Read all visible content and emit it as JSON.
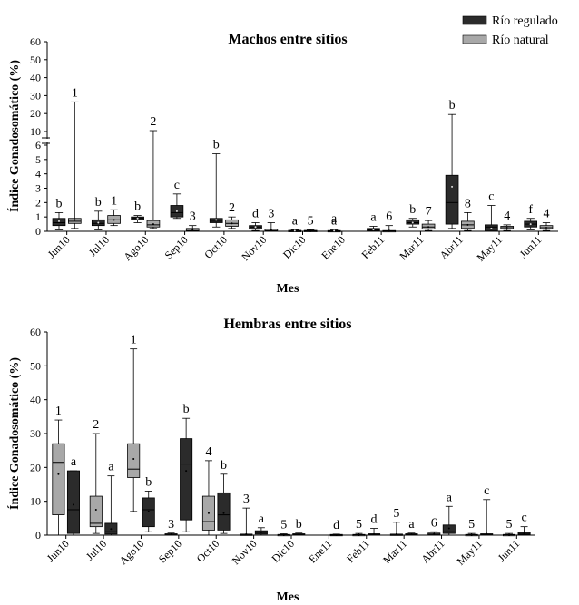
{
  "legend": {
    "items": [
      {
        "label": "Río regulado",
        "color": "#2b2b2b"
      },
      {
        "label": "Río natural",
        "color": "#a8a8a8"
      }
    ]
  },
  "chart_data": [
    {
      "type": "box",
      "title": "Machos entre sitios",
      "xlabel": "Mes",
      "ylabel": "Índice Gonadosomático (%)",
      "y_axis_break": true,
      "y_ticks_lower": [
        0,
        1,
        2,
        3,
        4,
        5,
        6
      ],
      "y_ticks_upper": [
        10,
        20,
        30,
        40,
        50,
        60
      ],
      "categories": [
        "Jun10",
        "Jul10",
        "Ago10",
        "Sep10",
        "Oct10",
        "Nov10",
        "Dic10",
        "Ene10",
        "Feb11",
        "Mar11",
        "Abr11",
        "May11",
        "Jun11"
      ],
      "series": [
        {
          "name": "Río regulado",
          "boxes": [
            {
              "min": 0.1,
              "q1": 0.4,
              "median": 0.6,
              "q3": 0.9,
              "max": 1.3,
              "mean": 0.7,
              "label": "b"
            },
            {
              "min": 0.1,
              "q1": 0.4,
              "median": 0.55,
              "q3": 0.8,
              "max": 1.4,
              "mean": 0.6,
              "label": "b"
            },
            {
              "min": 0.6,
              "q1": 0.8,
              "median": 0.9,
              "q3": 1.0,
              "max": 1.1,
              "mean": 0.9,
              "label": "b"
            },
            {
              "min": 0.9,
              "q1": 1.0,
              "median": 1.3,
              "q3": 1.8,
              "max": 2.6,
              "mean": 1.4,
              "label": "c"
            },
            {
              "min": 0.3,
              "q1": 0.6,
              "median": 0.7,
              "q3": 0.9,
              "max": 5.4,
              "mean": 0.8,
              "label": "b"
            },
            {
              "min": 0.05,
              "q1": 0.15,
              "median": 0.3,
              "q3": 0.4,
              "max": 0.6,
              "mean": 0.3,
              "label": "d"
            },
            {
              "min": 0.0,
              "q1": 0.02,
              "median": 0.04,
              "q3": 0.06,
              "max": 0.1,
              "mean": 0.04,
              "label": "a"
            },
            {
              "min": 0.0,
              "q1": 0.02,
              "median": 0.03,
              "q3": 0.05,
              "max": 0.1,
              "mean": 0.04,
              "label": "a"
            },
            {
              "min": 0.0,
              "q1": 0.05,
              "median": 0.1,
              "q3": 0.2,
              "max": 0.35,
              "mean": 0.12,
              "label": "a"
            },
            {
              "min": 0.3,
              "q1": 0.5,
              "median": 0.6,
              "q3": 0.8,
              "max": 0.9,
              "mean": 0.6,
              "label": "b"
            },
            {
              "min": 0.2,
              "q1": 0.5,
              "median": 2.0,
              "q3": 3.9,
              "max": 19.5,
              "mean": 3.1,
              "label": "b"
            },
            {
              "min": 0.0,
              "q1": 0.02,
              "median": 0.3,
              "q3": 0.45,
              "max": 1.8,
              "mean": 0.2,
              "label": "c"
            },
            {
              "min": 0.1,
              "q1": 0.3,
              "median": 0.5,
              "q3": 0.7,
              "max": 0.9,
              "mean": 0.5,
              "label": "f"
            }
          ]
        },
        {
          "name": "Río natural",
          "boxes": [
            {
              "min": 0.2,
              "q1": 0.55,
              "median": 0.7,
              "q3": 0.9,
              "max": 26.5,
              "mean": 0.8,
              "label": "1"
            },
            {
              "min": 0.4,
              "q1": 0.55,
              "median": 0.8,
              "q3": 1.1,
              "max": 1.5,
              "mean": 0.8,
              "label": "1"
            },
            {
              "min": 0.2,
              "q1": 0.3,
              "median": 0.45,
              "q3": 0.75,
              "max": 10.5,
              "mean": 0.5,
              "label": "2"
            },
            {
              "min": 0.0,
              "q1": 0.02,
              "median": 0.05,
              "q3": 0.2,
              "max": 0.4,
              "mean": 0.1,
              "label": "3"
            },
            {
              "min": 0.2,
              "q1": 0.35,
              "median": 0.55,
              "q3": 0.8,
              "max": 1.0,
              "mean": 0.55,
              "label": "2"
            },
            {
              "min": 0.0,
              "q1": 0.02,
              "median": 0.05,
              "q3": 0.15,
              "max": 0.6,
              "mean": 0.1,
              "label": "3"
            },
            {
              "min": 0.0,
              "q1": 0.01,
              "median": 0.03,
              "q3": 0.06,
              "max": 0.1,
              "mean": 0.03,
              "label": "5"
            },
            null,
            {
              "min": 0.0,
              "q1": 0.01,
              "median": 0.02,
              "q3": 0.05,
              "max": 0.4,
              "mean": 0.05,
              "label": "6"
            },
            {
              "min": 0.05,
              "q1": 0.15,
              "median": 0.3,
              "q3": 0.5,
              "max": 0.75,
              "mean": 0.3,
              "label": "7"
            },
            {
              "min": 0.05,
              "q1": 0.2,
              "median": 0.45,
              "q3": 0.7,
              "max": 1.3,
              "mean": 0.45,
              "label": "8"
            },
            {
              "min": 0.05,
              "q1": 0.15,
              "median": 0.25,
              "q3": 0.35,
              "max": 0.45,
              "mean": 0.25,
              "label": "4"
            },
            {
              "min": 0.05,
              "q1": 0.15,
              "median": 0.25,
              "q3": 0.4,
              "max": 0.6,
              "mean": 0.25,
              "label": "4"
            }
          ]
        }
      ],
      "extra_labels": [
        {
          "category": "Ene10",
          "text": "a"
        }
      ]
    },
    {
      "type": "box",
      "title": "Hembras entre sitios",
      "xlabel": "Mes",
      "ylabel": "Índice Gonadosomático (%)",
      "ylim": [
        0,
        60
      ],
      "y_ticks": [
        0,
        10,
        20,
        30,
        40,
        50,
        60
      ],
      "categories": [
        "Jun10",
        "Jul10",
        "Ago10",
        "Sep10",
        "Oct10",
        "Nov10",
        "Dic10",
        "Ene11",
        "Feb11",
        "Mar11",
        "Abr11",
        "May11",
        "Jun11"
      ],
      "series": [
        {
          "name": "Río natural",
          "boxes": [
            {
              "min": 0.0,
              "q1": 6.0,
              "median": 21.5,
              "q3": 27.0,
              "max": 34.0,
              "mean": 18.0,
              "label": "1"
            },
            {
              "min": 0.5,
              "q1": 2.5,
              "median": 3.5,
              "q3": 11.5,
              "max": 30.0,
              "mean": 7.5,
              "label": "2"
            },
            {
              "min": 7.0,
              "q1": 17.0,
              "median": 19.5,
              "q3": 27.0,
              "max": 55.0,
              "mean": 22.5,
              "label": "1"
            },
            {
              "min": 0.0,
              "q1": 0.1,
              "median": 0.2,
              "q3": 0.4,
              "max": 0.6,
              "mean": 0.2,
              "label": "3"
            },
            {
              "min": 0.0,
              "q1": 1.5,
              "median": 4.0,
              "q3": 11.5,
              "max": 22.0,
              "mean": 6.5,
              "label": "4"
            },
            {
              "min": 0.0,
              "q1": 0.05,
              "median": 0.1,
              "q3": 0.3,
              "max": 8.0,
              "mean": 0.3,
              "label": "3"
            },
            {
              "min": 0.0,
              "q1": 0.05,
              "median": 0.1,
              "q3": 0.2,
              "max": 0.4,
              "mean": 0.1,
              "label": "5"
            },
            null,
            {
              "min": 0.0,
              "q1": 0.05,
              "median": 0.1,
              "q3": 0.2,
              "max": 0.5,
              "mean": 0.1,
              "label": "5"
            },
            {
              "min": 0.0,
              "q1": 0.05,
              "median": 0.1,
              "q3": 0.3,
              "max": 3.8,
              "mean": 0.3,
              "label": "5"
            },
            {
              "min": 0.0,
              "q1": 0.1,
              "median": 0.3,
              "q3": 0.6,
              "max": 1.0,
              "mean": 0.4,
              "label": "6"
            },
            {
              "min": 0.0,
              "q1": 0.05,
              "median": 0.1,
              "q3": 0.2,
              "max": 0.5,
              "mean": 0.1,
              "label": "5"
            },
            {
              "min": 0.0,
              "q1": 0.05,
              "median": 0.1,
              "q3": 0.2,
              "max": 0.5,
              "mean": 0.1,
              "label": "5"
            }
          ]
        },
        {
          "name": "Río regulado",
          "boxes": [
            {
              "min": 0.0,
              "q1": 0.5,
              "median": 7.5,
              "q3": 19.0,
              "max": 19.0,
              "mean": 9.0,
              "label": "a"
            },
            {
              "min": 0.0,
              "q1": 0.3,
              "median": 1.0,
              "q3": 3.5,
              "max": 17.5,
              "mean": 1.8,
              "label": "a"
            },
            {
              "min": 1.0,
              "q1": 2.5,
              "median": 7.5,
              "q3": 11.0,
              "max": 13.0,
              "mean": 7.0,
              "label": "b"
            },
            {
              "min": 1.0,
              "q1": 4.5,
              "median": 21.0,
              "q3": 28.5,
              "max": 34.5,
              "mean": 19.0,
              "label": "b"
            },
            {
              "min": 0.5,
              "q1": 1.5,
              "median": 6.0,
              "q3": 12.5,
              "max": 18.0,
              "mean": 6.5,
              "label": "b"
            },
            {
              "min": 0.0,
              "q1": 0.3,
              "median": 0.8,
              "q3": 1.3,
              "max": 2.2,
              "mean": 0.8,
              "label": "a"
            },
            {
              "min": 0.0,
              "q1": 0.1,
              "median": 0.2,
              "q3": 0.4,
              "max": 0.6,
              "mean": 0.2,
              "label": "b"
            },
            {
              "min": 0.0,
              "q1": 0.05,
              "median": 0.1,
              "q3": 0.2,
              "max": 0.3,
              "mean": 0.1,
              "label": "d"
            },
            {
              "min": 0.0,
              "q1": 0.1,
              "median": 0.2,
              "q3": 0.4,
              "max": 2.0,
              "mean": 0.3,
              "label": "d"
            },
            {
              "min": 0.0,
              "q1": 0.1,
              "median": 0.2,
              "q3": 0.4,
              "max": 0.6,
              "mean": 0.2,
              "label": "a"
            },
            {
              "min": 0.0,
              "q1": 0.5,
              "median": 1.0,
              "q3": 3.0,
              "max": 8.5,
              "mean": 2.0,
              "label": "a"
            },
            {
              "min": 0.0,
              "q1": 0.1,
              "median": 0.2,
              "q3": 0.4,
              "max": 10.5,
              "mean": 0.4,
              "label": "c"
            },
            {
              "min": 0.0,
              "q1": 0.1,
              "median": 0.3,
              "q3": 0.8,
              "max": 2.5,
              "mean": 0.5,
              "label": "c"
            }
          ]
        }
      ]
    }
  ]
}
